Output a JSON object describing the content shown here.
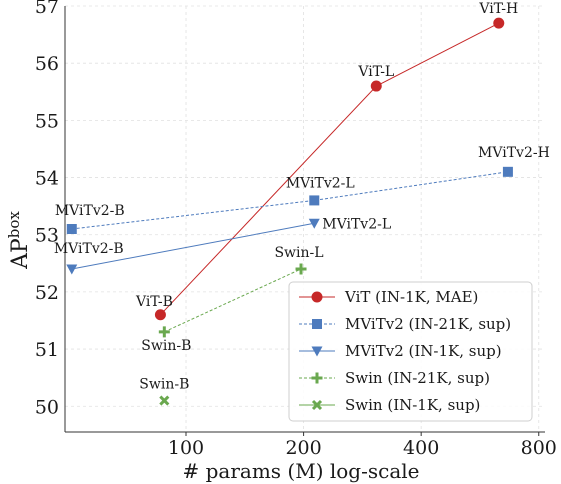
{
  "chart_data": {
    "type": "scatter",
    "xlabel": "# params (M) log-scale",
    "ylabel_main": "AP",
    "ylabel_sup": "box",
    "xscale": "log",
    "xlim": [
      49,
      830
    ],
    "ylim": [
      49.55,
      57
    ],
    "xticks": [
      100,
      200,
      400,
      800
    ],
    "xtick_labels": [
      "100",
      "200",
      "400",
      "800"
    ],
    "yticks": [
      50,
      51,
      52,
      53,
      54,
      55,
      56,
      57
    ],
    "ytick_labels": [
      "50",
      "51",
      "52",
      "53",
      "54",
      "55",
      "56",
      "57"
    ],
    "grid": true,
    "legend_position": "lower-right",
    "series": [
      {
        "name": "ViT (IN-1K, MAE)",
        "color": "#c62828",
        "marker": "circle",
        "line": "solid",
        "points": [
          {
            "x": 86,
            "y": 51.6,
            "label": "ViT-B"
          },
          {
            "x": 307,
            "y": 55.6,
            "label": "ViT-L"
          },
          {
            "x": 632,
            "y": 56.7,
            "label": "ViT-H"
          }
        ]
      },
      {
        "name": "MViTv2 (IN-21K, sup)",
        "color": "#4e7bbd",
        "marker": "square",
        "line": "dashed",
        "points": [
          {
            "x": 51,
            "y": 53.1,
            "label": "MViTv2-B"
          },
          {
            "x": 213,
            "y": 53.6,
            "label": "MViTv2-L"
          },
          {
            "x": 667,
            "y": 54.1,
            "label": "MViTv2-H"
          }
        ]
      },
      {
        "name": "MViTv2 (IN-1K, sup)",
        "color": "#4e7bbd",
        "marker": "triangle-down",
        "line": "solid",
        "points": [
          {
            "x": 51,
            "y": 52.4,
            "label": "MViTv2-B"
          },
          {
            "x": 213,
            "y": 53.2,
            "label": "MViTv2-L"
          }
        ]
      },
      {
        "name": "Swin (IN-21K, sup)",
        "color": "#6aa84f",
        "marker": "plus",
        "line": "dashed",
        "points": [
          {
            "x": 88,
            "y": 51.3,
            "label": "Swin-B"
          },
          {
            "x": 197,
            "y": 52.4,
            "label": "Swin-L"
          }
        ]
      },
      {
        "name": "Swin (IN-1K, sup)",
        "color": "#6aa84f",
        "marker": "x",
        "line": "solid",
        "points": [
          {
            "x": 88,
            "y": 50.1,
            "label": "Swin-B"
          }
        ]
      }
    ]
  }
}
